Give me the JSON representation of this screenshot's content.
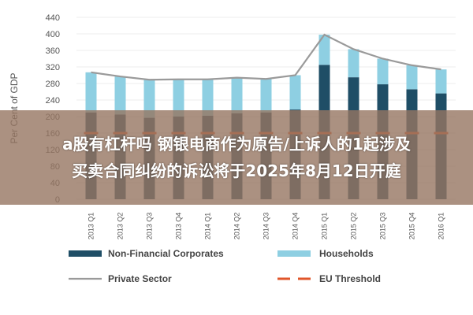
{
  "chart_data": {
    "type": "bar",
    "stacked": true,
    "ylabel": "Per Cent of GDP",
    "ylim": [
      0,
      440
    ],
    "yticks": [
      0,
      40,
      80,
      120,
      160,
      200,
      240,
      280,
      320,
      360,
      400,
      440
    ],
    "categories": [
      "2013 Q1",
      "2013 Q2",
      "2013 Q3",
      "2013 Q4",
      "2014 Q1",
      "2014 Q2",
      "2014 Q3",
      "2014 Q4",
      "2015 Q1",
      "2015 Q2",
      "2015 Q3",
      "2015 Q4",
      "2016 Q1"
    ],
    "series": [
      {
        "name": "Non-Financial Corporates",
        "kind": "bar",
        "color": "#1f4e66",
        "values": [
          210,
          205,
          197,
          200,
          202,
          208,
          210,
          217,
          325,
          295,
          278,
          266,
          256
        ]
      },
      {
        "name": "Households",
        "kind": "bar",
        "color": "#8ecfe2",
        "values": [
          97,
          92,
          92,
          90,
          88,
          86,
          81,
          83,
          73,
          68,
          62,
          58,
          58
        ]
      },
      {
        "name": "Private Sector",
        "kind": "line",
        "color": "#9a9a9a",
        "values": [
          307,
          297,
          289,
          290,
          290,
          294,
          291,
          300,
          398,
          363,
          340,
          324,
          314
        ]
      },
      {
        "name": "EU Threshold",
        "kind": "dashed",
        "color": "#e0562a",
        "values": [
          160,
          160,
          160,
          160,
          160,
          160,
          160,
          160,
          160,
          160,
          160,
          160,
          160
        ]
      }
    ],
    "legend": [
      {
        "label": "Non-Financial Corporates",
        "swatch": "bar",
        "color": "#1f4e66"
      },
      {
        "label": "Households",
        "swatch": "bar",
        "color": "#8ecfe2"
      },
      {
        "label": "Private Sector",
        "swatch": "line",
        "color": "#9a9a9a"
      },
      {
        "label": "EU Threshold",
        "swatch": "dashed",
        "color": "#e0562a"
      }
    ],
    "legend_position": "bottom"
  },
  "overlay": {
    "line1": "a股有杠杆吗 钢银电商作为原告/上诉人的1起涉及",
    "line2": "买卖合同纠纷的诉讼将于2025年8月12日开庭"
  }
}
